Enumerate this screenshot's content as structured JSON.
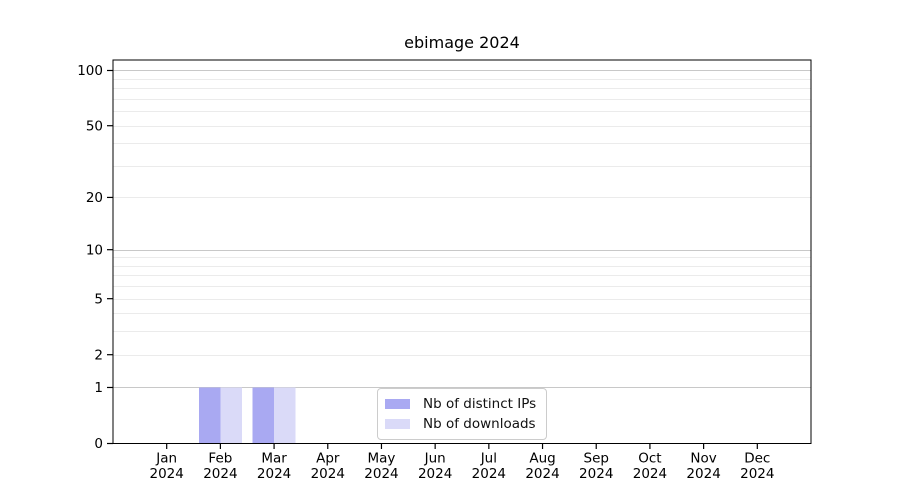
{
  "figure": {
    "background": "#ffffff",
    "text_color": "#000000"
  },
  "chart_data": {
    "type": "bar",
    "title": "ebimage 2024",
    "categories": [
      "Jan 2024",
      "Feb 2024",
      "Mar 2024",
      "Apr 2024",
      "May 2024",
      "Jun 2024",
      "Jul 2024",
      "Aug 2024",
      "Sep 2024",
      "Oct 2024",
      "Nov 2024",
      "Dec 2024"
    ],
    "series": [
      {
        "name": "Nb of distinct IPs",
        "color": "#a9a9f2",
        "values": [
          0,
          1,
          1,
          0,
          0,
          0,
          0,
          0,
          0,
          0,
          0,
          0
        ]
      },
      {
        "name": "Nb of downloads",
        "color": "#dadaf8",
        "values": [
          0,
          1,
          1,
          0,
          0,
          0,
          0,
          0,
          0,
          0,
          0,
          0
        ]
      }
    ],
    "xlabel": "",
    "ylabel": "",
    "yscale": "log10(1+y)",
    "ylim": [
      0,
      114
    ],
    "yticks": [
      0,
      1,
      2,
      5,
      10,
      20,
      50,
      100
    ],
    "yticks_minor": [
      3,
      4,
      6,
      7,
      8,
      9,
      30,
      40,
      60,
      70,
      80,
      90
    ],
    "grid": "horizontal",
    "legend": {
      "position": "lower center",
      "border_color": "#cccccc"
    },
    "colors": {
      "axis": "#000000",
      "grid_major": "#c8c8c8",
      "grid_minor": "#ebebeb"
    }
  }
}
